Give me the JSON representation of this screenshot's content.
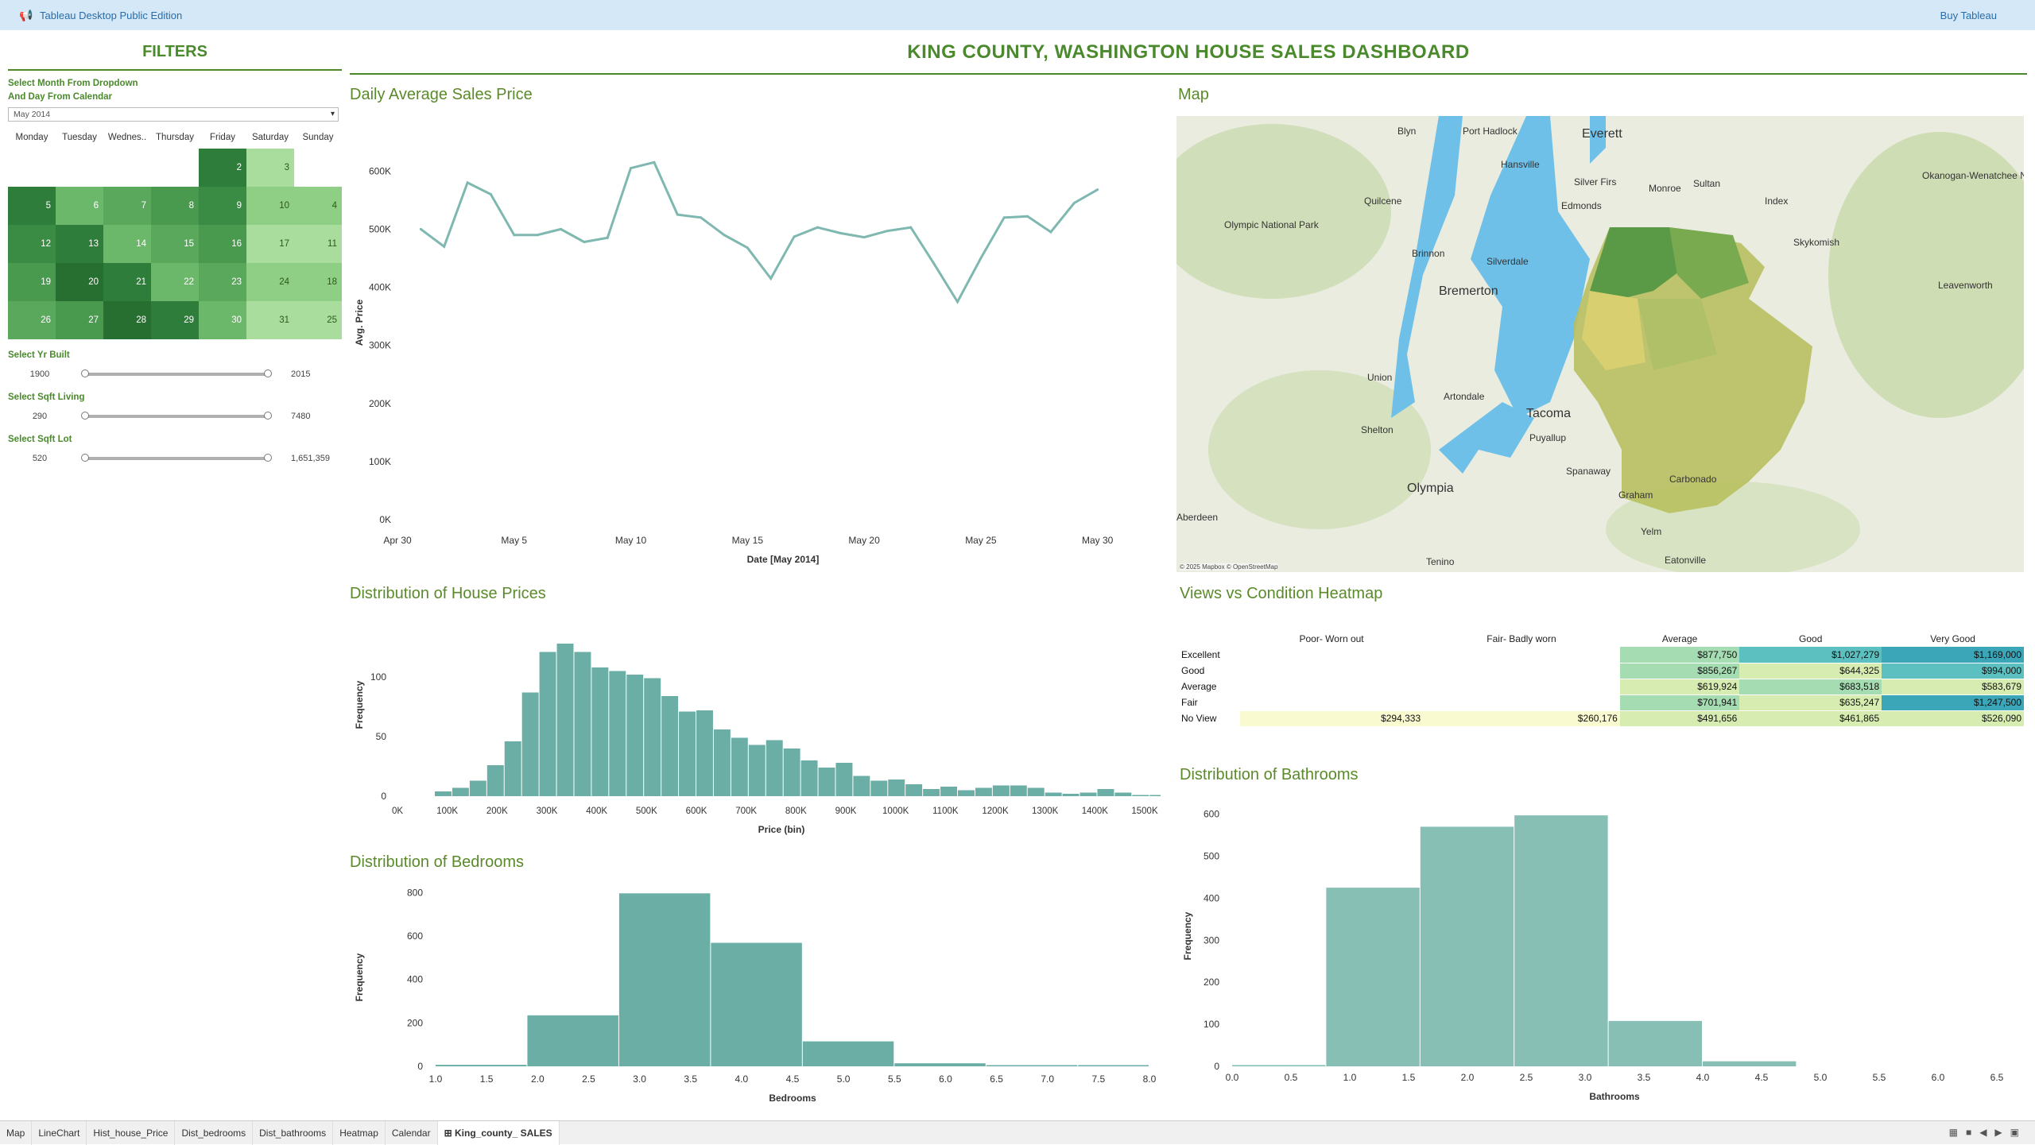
{
  "app": {
    "title": "Tableau Desktop Public Edition",
    "buy_label": "Buy Tableau"
  },
  "dashboard_title": "KING COUNTY, WASHINGTON HOUSE SALES  DASHBOARD",
  "filters": {
    "title": "FILTERS",
    "month_label_1": "Select Month From Dropdown",
    "month_label_2": "And Day From Calendar",
    "month_value": "May 2014",
    "weekdays": [
      "Monday",
      "Tuesday",
      "Wednes..",
      "Thursday",
      "Friday",
      "Saturday",
      "Sunday"
    ],
    "calendar": [
      [
        null,
        null,
        null,
        null,
        "2",
        "3",
        null
      ],
      [
        "5",
        "6",
        "7",
        "8",
        "9",
        "10",
        "4"
      ],
      [
        "12",
        "13",
        "14",
        "15",
        "16",
        "17",
        "11"
      ],
      [
        "19",
        "20",
        "21",
        "22",
        "23",
        "24",
        "18"
      ],
      [
        "26",
        "27",
        "28",
        "29",
        "30",
        "31",
        "25"
      ]
    ],
    "yr_built_label": "Select Yr Built",
    "yr_built_min": "1900",
    "yr_built_max": "2015",
    "sqft_living_label": "Select Sqft Living",
    "sqft_living_min": "290",
    "sqft_living_max": "7480",
    "sqft_lot_label": "Select Sqft Lot",
    "sqft_lot_min": "520",
    "sqft_lot_max": "1,651,359"
  },
  "titles": {
    "line": "Daily Average Sales Price",
    "map": "Map",
    "price_hist": "Distribution of House Prices",
    "heatmap": "Views vs Condition Heatmap",
    "bedrooms": "Distribution of Bedrooms",
    "bathrooms": "Distribution of Bathrooms"
  },
  "map": {
    "credit": "© 2025 Mapbox © OpenStreetMap",
    "places": [
      "Blyn",
      "Port Hadlock",
      "Everett",
      "Hansville",
      "Silver Firs",
      "Monroe",
      "Sultan",
      "Quilcene",
      "Edmonds",
      "Index",
      "Olympic National Park",
      "Skykomish",
      "Brinnon",
      "Silverdale",
      "Bremerton",
      "Leavenworth",
      "Okanogan-Wenatchee National Forest",
      "Union",
      "Artondale",
      "Shelton",
      "Tacoma",
      "Puyallup",
      "Olympia",
      "Spanaway",
      "Graham",
      "Carbonado",
      "Aberdeen",
      "Yelm",
      "Tenino",
      "Eatonville"
    ]
  },
  "heatmap": {
    "columns": [
      "Poor- Worn out",
      "Fair- Badly worn",
      "Average",
      "Good",
      "Very Good"
    ],
    "rows": [
      {
        "label": "Excellent",
        "cells": [
          "",
          "",
          "$877,750",
          "$1,027,279",
          "$1,169,000"
        ]
      },
      {
        "label": "Good",
        "cells": [
          "",
          "",
          "$856,267",
          "$644,325",
          "$994,000"
        ]
      },
      {
        "label": "Average",
        "cells": [
          "",
          "",
          "$619,924",
          "$683,518",
          "$583,679"
        ]
      },
      {
        "label": "Fair",
        "cells": [
          "",
          "",
          "$701,941",
          "$635,247",
          "$1,247,500"
        ]
      },
      {
        "label": "No View",
        "cells": [
          "$294,333",
          "$260,176",
          "$491,656",
          "$461,865",
          "$526,090"
        ]
      }
    ],
    "colors": [
      "#fafad0",
      "#d7ecb0",
      "#a6dcb2",
      "#5cc0c0",
      "#3aa6b8"
    ]
  },
  "chart_data": [
    {
      "type": "line",
      "title": "Daily Average Sales Price",
      "xlabel": "Date [May 2014]",
      "ylabel": "Avg. Price",
      "x_ticks": [
        "Apr 30",
        "May 5",
        "May 10",
        "May 15",
        "May 20",
        "May 25",
        "May 30"
      ],
      "y_ticks": [
        "0K",
        "100K",
        "200K",
        "300K",
        "400K",
        "500K",
        "600K"
      ],
      "ylim": [
        0,
        640000
      ],
      "x": [
        1,
        2,
        3,
        4,
        5,
        6,
        7,
        8,
        9,
        10,
        11,
        12,
        13,
        14,
        15,
        16,
        17,
        18,
        19,
        20,
        21,
        22,
        23,
        24,
        25,
        26,
        27,
        28,
        29,
        30,
        31
      ],
      "values": [
        500000,
        470000,
        580000,
        560000,
        490000,
        490000,
        500000,
        478000,
        485000,
        605000,
        615000,
        525000,
        520000,
        490000,
        468000,
        415000,
        487000,
        503000,
        493000,
        486000,
        497000,
        503000,
        440000,
        375000,
        450000,
        520000,
        522000,
        495000,
        545000,
        568000,
        null
      ],
      "color": "#7fb8b0"
    },
    {
      "type": "bar",
      "title": "Distribution of House Prices",
      "xlabel": "Price (bin)",
      "ylabel": "Frequency",
      "x_ticks": [
        "0K",
        "100K",
        "200K",
        "300K",
        "400K",
        "500K",
        "600K",
        "700K",
        "800K",
        "900K",
        "1000K",
        "1100K",
        "1200K",
        "1300K",
        "1400K",
        "1500K"
      ],
      "y_ticks": [
        "0",
        "50",
        "100"
      ],
      "bin_width": 35000,
      "bin_start": 75000,
      "values": [
        4,
        7,
        13,
        26,
        46,
        87,
        121,
        128,
        121,
        108,
        105,
        102,
        99,
        84,
        71,
        72,
        56,
        49,
        43,
        47,
        40,
        30,
        24,
        28,
        17,
        13,
        14,
        10,
        6,
        8,
        5,
        7,
        9,
        9,
        7,
        3,
        2,
        3,
        6,
        3,
        1,
        1
      ],
      "ylim": [
        0,
        140
      ],
      "color": "#6aaea5"
    },
    {
      "type": "bar",
      "title": "Distribution of Bedrooms",
      "xlabel": "Bedrooms",
      "ylabel": "Frequency",
      "x_ticks": [
        "1.0",
        "1.5",
        "2.0",
        "2.5",
        "3.0",
        "3.5",
        "4.0",
        "4.5",
        "5.0",
        "5.5",
        "6.0",
        "6.5",
        "7.0",
        "7.5",
        "8.0"
      ],
      "y_ticks": [
        "0",
        "200",
        "400",
        "600",
        "800"
      ],
      "bins": [
        [
          1.0,
          1.9,
          7
        ],
        [
          1.9,
          2.8,
          235
        ],
        [
          2.8,
          3.7,
          797
        ],
        [
          3.7,
          4.6,
          569
        ],
        [
          4.6,
          5.5,
          115
        ],
        [
          5.5,
          6.4,
          14
        ],
        [
          6.4,
          7.3,
          3
        ],
        [
          7.3,
          8.0,
          1
        ]
      ],
      "ylim": [
        0,
        820
      ],
      "color": "#6aaea5"
    },
    {
      "type": "bar",
      "title": "Distribution of Bathrooms",
      "xlabel": "Bathrooms",
      "ylabel": "Frequency",
      "x_ticks": [
        "0.0",
        "0.5",
        "1.0",
        "1.5",
        "2.0",
        "2.5",
        "3.0",
        "3.5",
        "4.0",
        "4.5",
        "5.0",
        "5.5",
        "6.0",
        "6.5"
      ],
      "y_ticks": [
        "0",
        "100",
        "200",
        "300",
        "400",
        "500",
        "600"
      ],
      "bins": [
        [
          0.0,
          0.8,
          3
        ],
        [
          0.8,
          1.6,
          425
        ],
        [
          1.6,
          2.4,
          570
        ],
        [
          2.4,
          3.2,
          597
        ],
        [
          3.2,
          4.0,
          108
        ],
        [
          4.0,
          4.8,
          12
        ]
      ],
      "ylim": [
        0,
        620
      ],
      "color": "#87bfb5"
    }
  ],
  "tabs": [
    "Map",
    "LineChart",
    "Hist_house_Price",
    "Dist_bedrooms",
    "Dist_bathrooms",
    "Heatmap",
    "Calendar",
    "King_county_ SALES"
  ],
  "active_tab": "King_county_ SALES"
}
